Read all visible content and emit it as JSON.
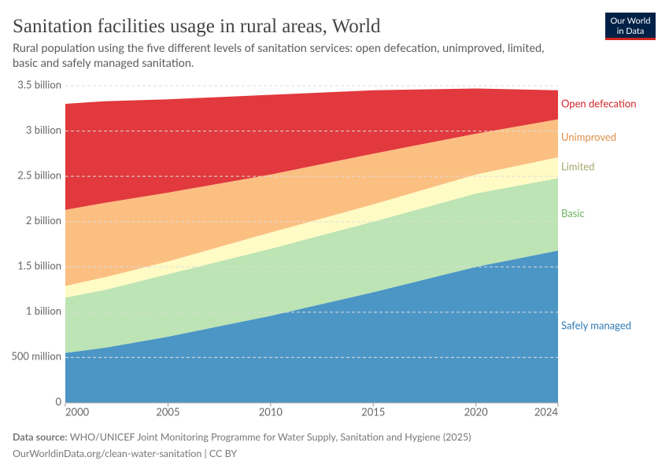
{
  "header": {
    "title": "Sanitation facilities usage in rural areas, World",
    "subtitle_lines": [
      "Rural population using the five different levels of sanitation services: open defecation, unimproved, limited,",
      "basic and safely managed sanitation."
    ],
    "logo_lines": [
      "Our World",
      "in Data"
    ]
  },
  "footer": {
    "source_label": "Data source:",
    "source": "WHO/UNICEF Joint Monitoring Programme for Water Supply, Sanitation and Hygiene (2025)",
    "url": "OurWorldinData.org/clean-water-sanitation | CC BY"
  },
  "chart_data": {
    "type": "stacked-area",
    "x": [
      2000,
      2002,
      2005,
      2010,
      2015,
      2020,
      2024
    ],
    "xlim": [
      2000,
      2024
    ],
    "xticks": [
      2000,
      2005,
      2010,
      2015,
      2020,
      2024
    ],
    "ylim": [
      0,
      3500000000
    ],
    "yticks": [
      0,
      {
        "value": 500000000,
        "label": "500 million"
      },
      {
        "value": 1000000000,
        "label": "1 billion"
      },
      {
        "value": 1500000000,
        "label": "1.5 billion"
      },
      {
        "value": 2000000000,
        "label": "2 billion"
      },
      {
        "value": 2500000000,
        "label": "2.5 billion"
      },
      {
        "value": 3000000000,
        "label": "3 billion"
      },
      {
        "value": 3500000000,
        "label": "3.5 billion"
      }
    ],
    "grid": true,
    "series": [
      {
        "name": "Safely managed",
        "color": "#4c96c6",
        "label_color": "#2f78b4",
        "values": [
          550000000,
          610000000,
          730000000,
          960000000,
          1220000000,
          1500000000,
          1680000000
        ]
      },
      {
        "name": "Basic",
        "color": "#bde4b4",
        "label_color": "#6cb25c",
        "values": [
          610000000,
          640000000,
          690000000,
          740000000,
          780000000,
          810000000,
          800000000
        ]
      },
      {
        "name": "Limited",
        "color": "#fefbc4",
        "label_color": "#a5a56a",
        "values": [
          130000000,
          140000000,
          140000000,
          180000000,
          190000000,
          210000000,
          230000000
        ]
      },
      {
        "name": "Unimproved",
        "color": "#fbbf82",
        "label_color": "#e0904a",
        "values": [
          840000000,
          820000000,
          760000000,
          640000000,
          560000000,
          450000000,
          420000000
        ]
      },
      {
        "name": "Open defecation",
        "color": "#e1393d",
        "label_color": "#d4252a",
        "values": [
          1170000000,
          1120000000,
          1030000000,
          880000000,
          700000000,
          500000000,
          320000000
        ]
      }
    ]
  }
}
